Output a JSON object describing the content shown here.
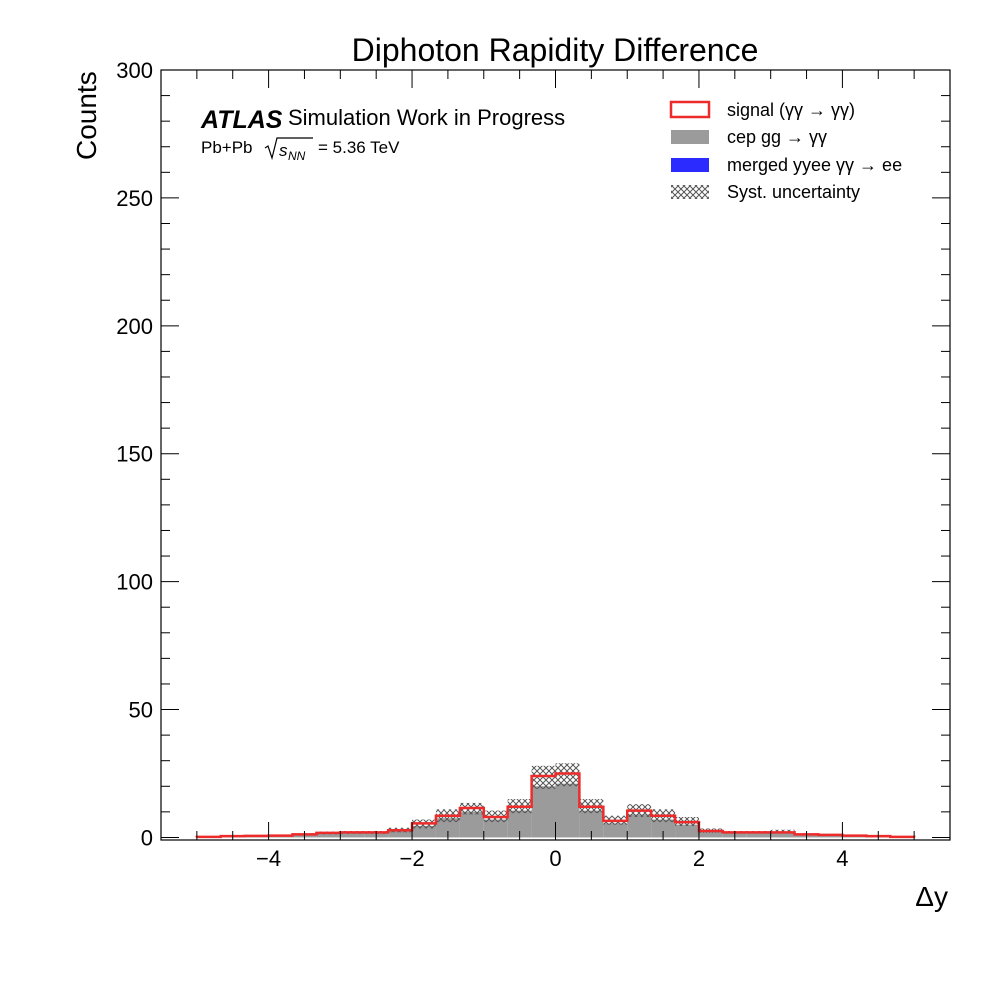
{
  "chart_data": {
    "type": "bar",
    "title": "Diphoton Rapidity Difference",
    "xlabel": "Δy",
    "ylabel": "Counts",
    "xlim": [
      -5.5,
      5.5
    ],
    "ylim": [
      -1,
      300
    ],
    "x_ticks": [
      -4,
      -2,
      0,
      2,
      4
    ],
    "x_tick_labels": [
      "−4",
      "−2",
      "0",
      "2",
      "4"
    ],
    "y_ticks": [
      0,
      50,
      100,
      150,
      200,
      250,
      300
    ],
    "y_tick_labels": [
      "0",
      "50",
      "100",
      "150",
      "200",
      "250",
      "300"
    ],
    "grid": false,
    "legend_position": "top-right",
    "atlas_label": {
      "brand": "ATLAS",
      "status": "Simulation Work in Progress",
      "system": "Pb+Pb",
      "energy": "= 5.36 TeV"
    },
    "bin_edges": [
      -5.0,
      -4.667,
      -4.333,
      -4.0,
      -3.667,
      -3.333,
      -3.0,
      -2.667,
      -2.333,
      -2.0,
      -1.667,
      -1.333,
      -1.0,
      -0.667,
      -0.333,
      0.0,
      0.333,
      0.667,
      1.0,
      1.333,
      1.667,
      2.0,
      2.333,
      2.667,
      3.0,
      3.333,
      3.667,
      4.0,
      4.333,
      4.667,
      5.0
    ],
    "series": [
      {
        "name": "signal  (γγ → γγ)",
        "style": "line",
        "color": "#ee2b2b",
        "values": [
          0.2,
          0.5,
          0.6,
          0.7,
          1.2,
          1.8,
          2.0,
          2.0,
          2.8,
          5.5,
          8.5,
          11.5,
          8.0,
          12.0,
          24.0,
          25.0,
          12.0,
          6.5,
          10.5,
          8.5,
          6.0,
          2.5,
          2.0,
          2.0,
          2.0,
          1.2,
          1.0,
          0.7,
          0.5,
          0.2
        ]
      },
      {
        "name": "cep  gg → γγ",
        "style": "fill",
        "color": "#9b9b9b",
        "values": [
          0.2,
          0.5,
          0.6,
          0.7,
          1.1,
          1.6,
          1.8,
          1.8,
          2.5,
          4.5,
          7.5,
          10.0,
          7.0,
          10.5,
          20.0,
          21.0,
          10.5,
          5.5,
          9.0,
          7.0,
          5.0,
          2.0,
          1.8,
          1.8,
          1.8,
          1.1,
          0.9,
          0.7,
          0.5,
          0.2
        ]
      },
      {
        "name": "merged yyee  γγ → ee",
        "style": "fill",
        "color": "#2b2bff",
        "values": [
          0,
          0,
          0,
          0,
          0,
          0,
          0,
          0,
          0,
          0,
          0,
          0,
          0,
          0,
          0,
          0,
          0,
          0,
          0,
          0,
          0,
          0,
          0,
          0,
          0,
          0,
          0,
          0,
          0,
          0
        ]
      },
      {
        "name": "Syst. uncertainty",
        "style": "hatch",
        "color": "#555555",
        "values_high": [
          0.3,
          0.6,
          0.8,
          1.0,
          1.6,
          2.3,
          2.5,
          2.5,
          3.8,
          7.0,
          11.0,
          13.5,
          10.5,
          15.0,
          28.0,
          29.0,
          15.0,
          8.5,
          13.0,
          11.0,
          8.0,
          3.5,
          2.5,
          2.5,
          3.0,
          1.6,
          1.3,
          1.0,
          0.7,
          0.3
        ],
        "values_low": [
          0.1,
          0.3,
          0.4,
          0.5,
          0.8,
          1.2,
          1.4,
          1.4,
          2.0,
          3.5,
          6.0,
          9.0,
          6.0,
          9.5,
          19.0,
          20.0,
          9.5,
          5.0,
          8.0,
          6.0,
          4.5,
          1.8,
          1.5,
          1.5,
          1.5,
          0.9,
          0.7,
          0.5,
          0.3,
          0.1
        ]
      }
    ]
  }
}
